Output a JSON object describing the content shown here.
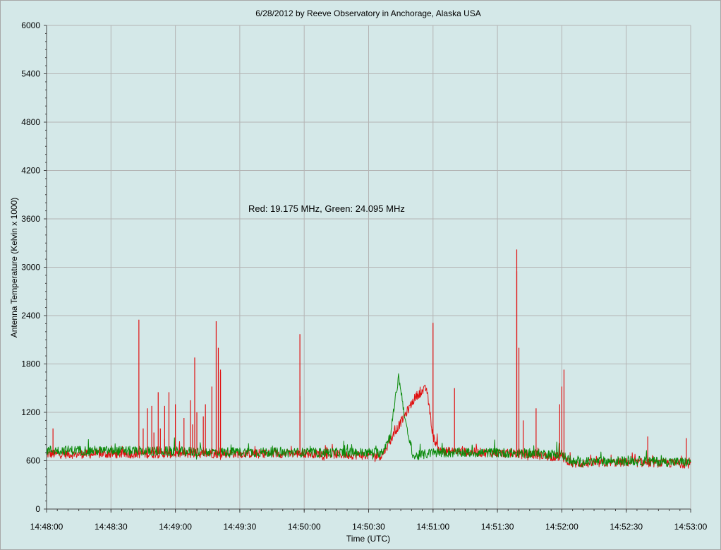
{
  "chart_data": {
    "type": "line",
    "title": "6/28/2012  by  Reeve Observatory  in  Anchorage, Alaska  USA",
    "xlabel": "Time (UTC)",
    "ylabel": "Antenna Temperature (Kelvin x 1000)",
    "annotation": "Red: 19.175 MHz, Green: 24.095 MHz",
    "xlim": [
      "14:48:00",
      "14:53:00"
    ],
    "ylim": [
      0,
      6000
    ],
    "x_ticks": [
      "14:48:00",
      "14:48:30",
      "14:49:00",
      "14:49:30",
      "14:50:00",
      "14:50:30",
      "14:51:00",
      "14:51:30",
      "14:52:00",
      "14:52:30",
      "14:53:00"
    ],
    "y_ticks": [
      "0",
      "600",
      "1200",
      "1800",
      "2400",
      "3000",
      "3600",
      "4200",
      "4800",
      "5400",
      "6000"
    ],
    "grid": true,
    "background_color": "#d4e8e8",
    "grid_color": "#b4b4b4",
    "series": [
      {
        "color": "#e01010",
        "baseline": [
          [
            "14:48:00",
            680
          ],
          [
            "14:50:00",
            690
          ],
          [
            "14:50:36",
            660
          ],
          [
            "14:50:52",
            1400
          ],
          [
            "14:50:57",
            1500
          ],
          [
            "14:51:00",
            900
          ],
          [
            "14:51:03",
            720
          ],
          [
            "14:51:45",
            680
          ],
          [
            "14:51:55",
            650
          ],
          [
            "14:52:00",
            650
          ],
          [
            "14:52:05",
            560
          ],
          [
            "14:52:30",
            580
          ],
          [
            "14:53:00",
            560
          ]
        ],
        "spikes": [
          [
            "14:48:03",
            1000
          ],
          [
            "14:48:45",
            1000
          ],
          [
            "14:48:50",
            950
          ],
          [
            "14:48:55",
            870
          ],
          [
            "14:49:00",
            1300
          ],
          [
            "14:49:08",
            1050
          ],
          [
            "14:48:43",
            2350
          ],
          [
            "14:48:47",
            1250
          ],
          [
            "14:48:49",
            1280
          ],
          [
            "14:48:52",
            1450
          ],
          [
            "14:48:53",
            1000
          ],
          [
            "14:48:55",
            1280
          ],
          [
            "14:48:57",
            1450
          ],
          [
            "14:49:04",
            1130
          ],
          [
            "14:49:07",
            1350
          ],
          [
            "14:49:09",
            1880
          ],
          [
            "14:49:10",
            1200
          ],
          [
            "14:49:13",
            1150
          ],
          [
            "14:49:14",
            1300
          ],
          [
            "14:49:17",
            1520
          ],
          [
            "14:49:19",
            2330
          ],
          [
            "14:49:20",
            2000
          ],
          [
            "14:49:21",
            1700
          ],
          [
            "14:49:21",
            1730
          ],
          [
            "14:49:58",
            2170
          ],
          [
            "14:49:58",
            1400
          ],
          [
            "14:51:00",
            2310
          ],
          [
            "14:51:10",
            1500
          ],
          [
            "14:51:39",
            3220
          ],
          [
            "14:51:39",
            2950
          ],
          [
            "14:51:40",
            2000
          ],
          [
            "14:51:42",
            1100
          ],
          [
            "14:51:48",
            1250
          ],
          [
            "14:51:59",
            1300
          ],
          [
            "14:52:00",
            1520
          ],
          [
            "14:52:01",
            1730
          ],
          [
            "14:52:40",
            900
          ],
          [
            "14:52:58",
            880
          ]
        ]
      },
      {
        "color": "#0a8a0a",
        "baseline": [
          [
            "14:48:00",
            730
          ],
          [
            "14:50:00",
            700
          ],
          [
            "14:50:36",
            700
          ],
          [
            "14:50:40",
            900
          ],
          [
            "14:50:44",
            1650
          ],
          [
            "14:50:48",
            950
          ],
          [
            "14:50:51",
            650
          ],
          [
            "14:51:00",
            700
          ],
          [
            "14:51:30",
            700
          ],
          [
            "14:52:00",
            680
          ],
          [
            "14:52:05",
            580
          ],
          [
            "14:52:30",
            600
          ],
          [
            "14:53:00",
            580
          ]
        ],
        "spikes": []
      }
    ]
  }
}
